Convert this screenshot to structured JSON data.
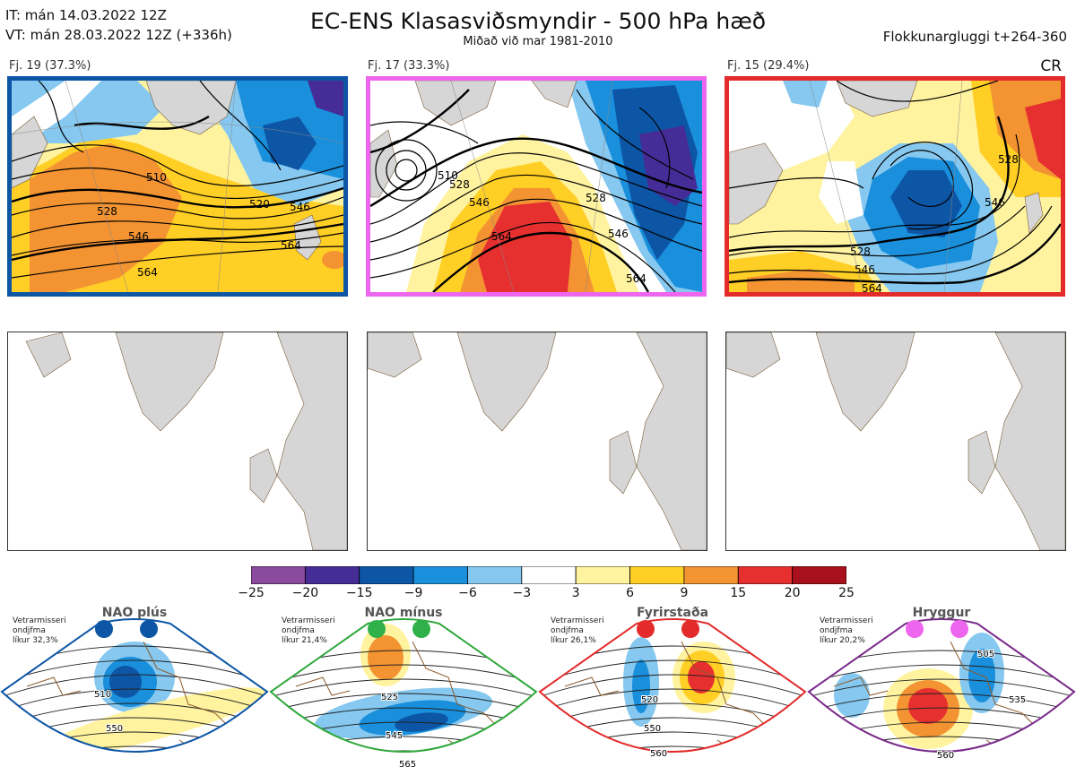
{
  "header": {
    "it_line": "IT: mán 14.03.2022 12Z",
    "vt_line": "VT: mán 28.03.2022 12Z  (+336h)",
    "title": "EC-ENS Klasasviðsmyndir - 500 hPa hæð",
    "subtitle": "Miðað við mar 1981-2010",
    "window": "Flokkunargluggi t+264-360"
  },
  "clusters": [
    {
      "label": "Fj. 19 (37.3%)",
      "border_color": "#0d56a6",
      "contours": [
        "510",
        "528",
        "546",
        "564",
        "520",
        "546",
        "564"
      ]
    },
    {
      "label": "Fj. 17 (33.3%)",
      "border_color": "#ee66ee",
      "contours": [
        "510",
        "528",
        "546",
        "564",
        "528",
        "546",
        "564"
      ]
    },
    {
      "label": "Fj. 15 (29.4%)",
      "border_color": "#e32b2b",
      "contours": [
        "528",
        "546",
        "564",
        "528",
        "546"
      ]
    }
  ],
  "cr_label": "CR",
  "colorbar": {
    "ticks": [
      "−25",
      "−20",
      "−15",
      "−9",
      "−6",
      "−3",
      "3",
      "6",
      "9",
      "15",
      "20",
      "25"
    ],
    "colors": [
      "#8a4a9e",
      "#452c96",
      "#0d56a6",
      "#1a8fdc",
      "#86c8ef",
      "#ffffff",
      "#fff3a0",
      "#ffcf26",
      "#f39332",
      "#e62f2f",
      "#a8101c"
    ]
  },
  "regimes": [
    {
      "name": "NAO plús",
      "note": [
        "Vetrarmisseri",
        "ondjfma",
        "líkur 32,3%"
      ],
      "frame_color": "#0d56a6",
      "dot_color": "#0d56a6",
      "contours": [
        "510",
        "550"
      ]
    },
    {
      "name": "NAO mínus",
      "note": [
        "Vetrarmisseri",
        "ondjfma",
        "líkur 21,4%"
      ],
      "frame_color": "#2fa83c",
      "dot_color": "#2fb049",
      "contours": [
        "525",
        "545",
        "565"
      ]
    },
    {
      "name": "Fyrirstaða",
      "note": [
        "Vetrarmisseri",
        "ondjfma",
        "líkur 26,1%"
      ],
      "frame_color": "#e32b2b",
      "dot_color": "#e32b2b",
      "contours": [
        "520",
        "550",
        "560"
      ]
    },
    {
      "name": "Hryggur",
      "note": [
        "Vetrarmisseri",
        "ondjfma",
        "líkur 20,2%"
      ],
      "frame_color": "#7a2a8a",
      "dot_color": "#ee66ee",
      "contours": [
        "505",
        "535",
        "560"
      ]
    }
  ]
}
